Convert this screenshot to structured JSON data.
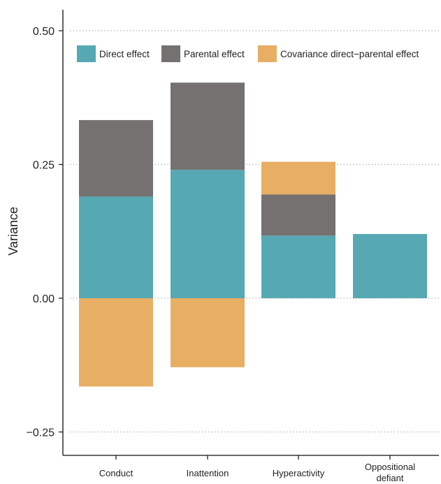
{
  "chart_data": {
    "type": "bar",
    "stacked": true,
    "diverging": true,
    "ylabel": "Variance",
    "xlabel": "",
    "ylim": [
      -0.3,
      0.54
    ],
    "yticks": [
      {
        "value": 0.5,
        "label": "0.50"
      },
      {
        "value": 0.25,
        "label": "0.25"
      },
      {
        "value": 0.0,
        "label": "0.00"
      },
      {
        "value": -0.25,
        "label": "−0.25"
      }
    ],
    "grid": "horizontal dotted",
    "legend": "top",
    "categories": [
      {
        "lines": [
          "Conduct"
        ]
      },
      {
        "lines": [
          "Inattention"
        ]
      },
      {
        "lines": [
          "Hyperactivity"
        ]
      },
      {
        "lines": [
          "Oppositional",
          "defiant"
        ]
      }
    ],
    "series": [
      {
        "name": "Direct effect",
        "color": "#56a8b2",
        "values": [
          0.19,
          0.24,
          0.117,
          0.12
        ]
      },
      {
        "name": "Parental effect",
        "color": "#757170",
        "values": [
          0.143,
          0.163,
          0.077,
          0.0
        ]
      },
      {
        "name": "Covariance direct−parental effect",
        "color": "#e8ae64",
        "values": [
          -0.165,
          -0.129,
          0.061,
          0.0
        ]
      }
    ]
  }
}
